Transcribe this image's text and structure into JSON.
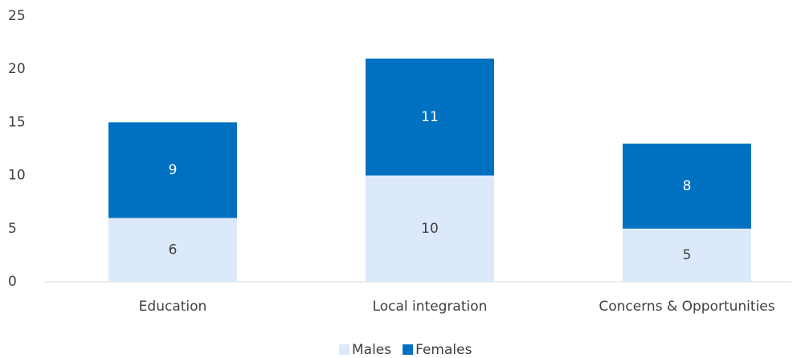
{
  "chart_data": {
    "type": "stacked_bar",
    "categories": [
      "Education",
      "Local integration",
      "Concerns & Opportunities"
    ],
    "series": [
      {
        "name": "Males",
        "color": "#dce9fb",
        "values": [
          6,
          10,
          5
        ]
      },
      {
        "name": "Females",
        "color": "#0070c0",
        "values": [
          9,
          11,
          8
        ]
      }
    ],
    "ylim": [
      0,
      25
    ],
    "yticks": [
      0,
      5,
      10,
      15,
      20,
      25
    ],
    "grid": false,
    "legend": "bottom"
  }
}
